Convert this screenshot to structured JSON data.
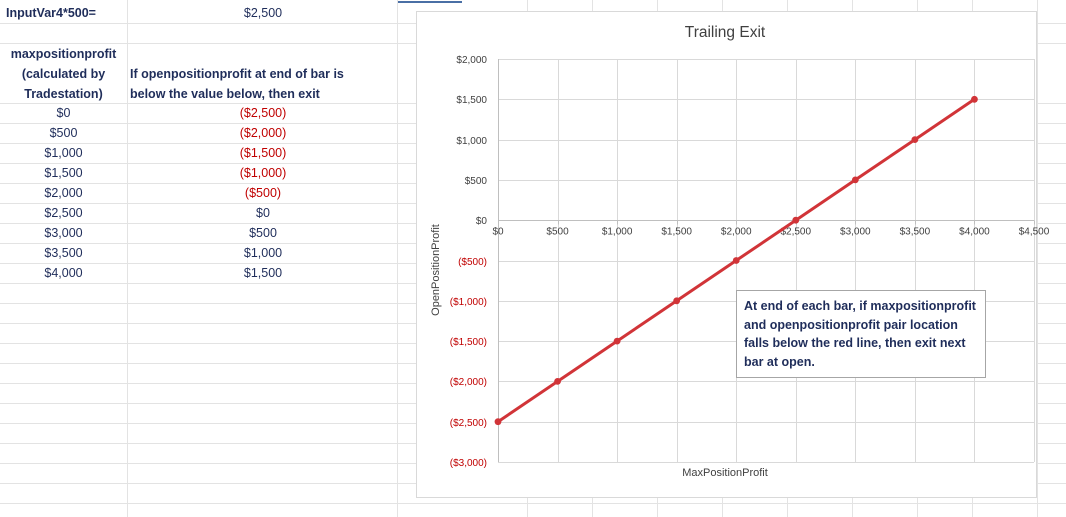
{
  "sheet": {
    "a1_label": "InputVar4*500=",
    "b1_value": "$2,500",
    "col_a_header": [
      "maxpositionprofit",
      "(calculated by",
      "Tradestation)"
    ],
    "col_b_header": [
      "If openpositionprofit at end of bar is",
      "below the value below, then exit"
    ],
    "rows": [
      {
        "max": "$0",
        "exit": "($2,500)"
      },
      {
        "max": "$500",
        "exit": "($2,000)"
      },
      {
        "max": "$1,000",
        "exit": "($1,500)"
      },
      {
        "max": "$1,500",
        "exit": "($1,000)"
      },
      {
        "max": "$2,000",
        "exit": "($500)"
      },
      {
        "max": "$2,500",
        "exit": "$0"
      },
      {
        "max": "$3,000",
        "exit": "$500"
      },
      {
        "max": "$3,500",
        "exit": "$1,000"
      },
      {
        "max": "$4,000",
        "exit": "$1,500"
      }
    ],
    "negative_color": "#c00000"
  },
  "chart_data": {
    "type": "line",
    "title": "Trailing Exit",
    "xlabel": "MaxPositionProfit",
    "ylabel": "OpenPositionProfit",
    "x": [
      0,
      500,
      1000,
      1500,
      2000,
      2500,
      3000,
      3500,
      4000
    ],
    "series": [
      {
        "values": [
          -2500,
          -2000,
          -1500,
          -1000,
          -500,
          0,
          500,
          1000,
          1500
        ],
        "color": "#d13438"
      }
    ],
    "xlim": [
      0,
      4500
    ],
    "ylim": [
      -3000,
      2000
    ],
    "x_ticks": [
      0,
      500,
      1000,
      1500,
      2000,
      2500,
      3000,
      3500,
      4000,
      4500
    ],
    "x_tick_labels": [
      "$0",
      "$500",
      "$1,000",
      "$1,500",
      "$2,000",
      "$2,500",
      "$3,000",
      "$3,500",
      "$4,000",
      "$4,500"
    ],
    "y_ticks": [
      2000,
      1500,
      1000,
      500,
      0,
      -500,
      -1000,
      -1500,
      -2000,
      -2500,
      -3000
    ],
    "y_tick_labels": [
      "$2,000",
      "$1,500",
      "$1,000",
      "$500",
      "$0",
      "($500)",
      "($1,000)",
      "($1,500)",
      "($2,000)",
      "($2,500)",
      "($3,000)"
    ],
    "grid": true,
    "negative_label_color": "#c00000",
    "annotation": "At end of each bar, if  maxpositionprofit and openpositionprofit pair location falls below the red line, then exit next bar at open."
  }
}
